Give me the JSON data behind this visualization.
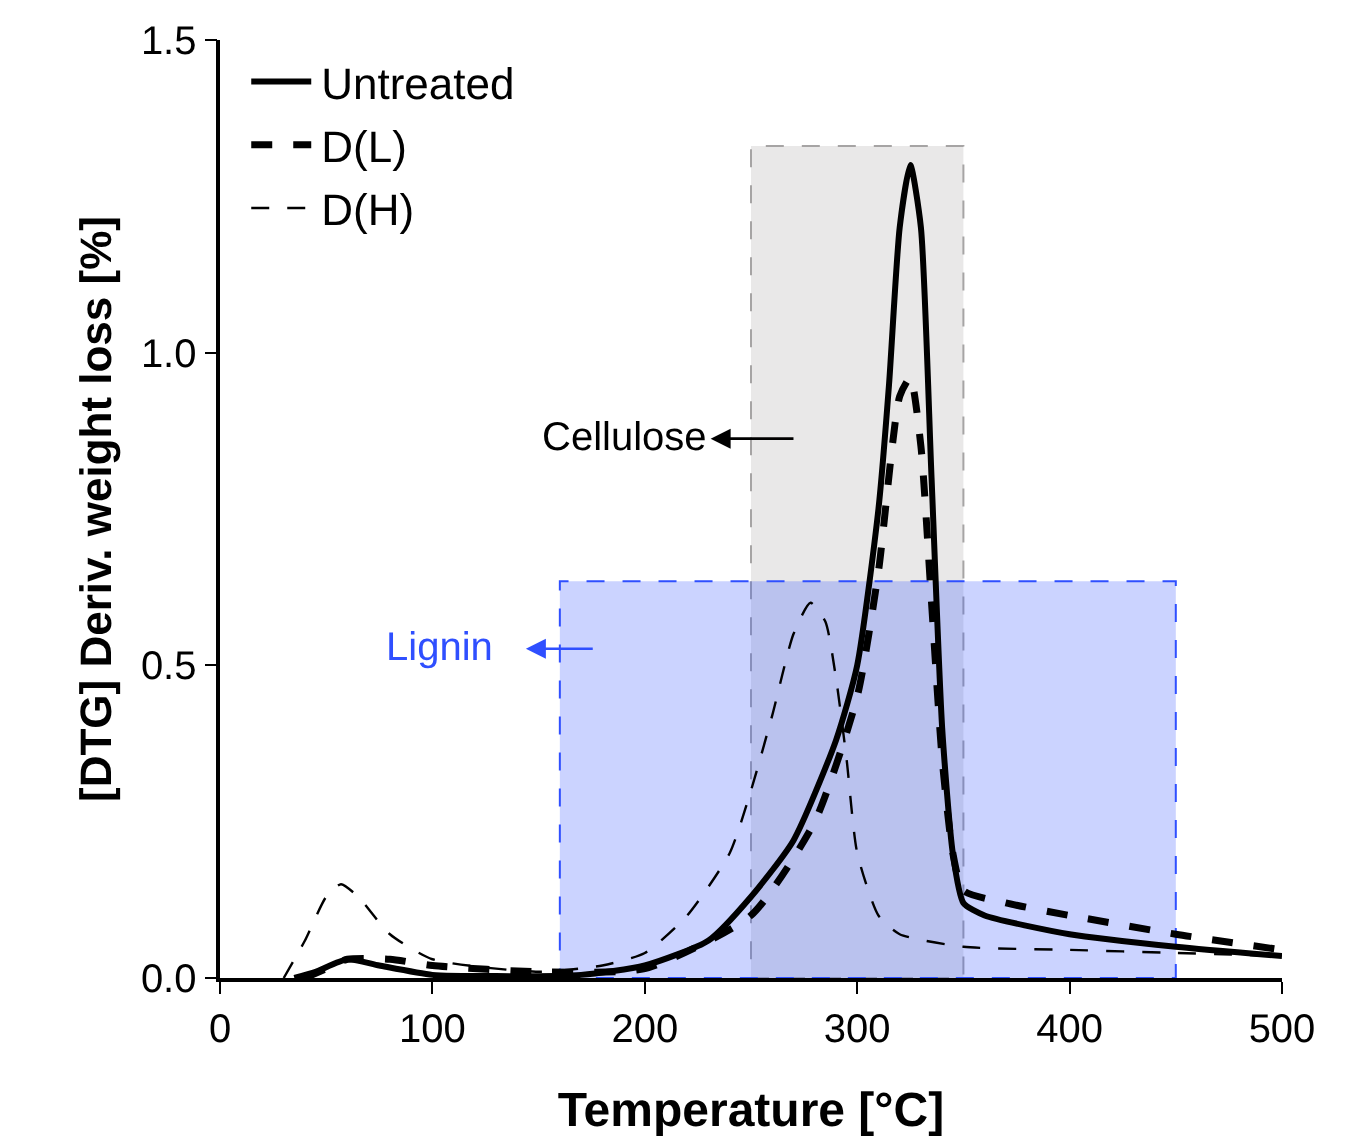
{
  "chart_data": {
    "type": "line",
    "xlabel": "Temperature [°C]",
    "ylabel": "[DTG] Deriv. weight loss [%]",
    "xlim": [
      0,
      500
    ],
    "ylim": [
      0,
      1.5
    ],
    "xticks": [
      0,
      100,
      200,
      300,
      400,
      500
    ],
    "yticks": [
      {
        "value": 0,
        "label": "0.0"
      },
      {
        "value": 0.5,
        "label": "0.5"
      },
      {
        "value": 1,
        "label": "1.0"
      },
      {
        "value": 1.5,
        "label": "1.5"
      }
    ],
    "grid": false,
    "legend": "top left",
    "marker": "none",
    "series": [
      {
        "name": "Untreated",
        "color": "#000000",
        "line_style": "solid",
        "x": [
          35,
          45,
          60,
          75,
          100,
          130,
          170,
          200,
          230,
          250,
          270,
          290,
          300,
          310,
          315,
          320,
          325,
          330,
          335,
          340,
          345,
          350,
          360,
          400,
          450,
          500
        ],
        "values": [
          0,
          0.01,
          0.03,
          0.02,
          0.005,
          0.003,
          0.005,
          0.02,
          0.06,
          0.13,
          0.22,
          0.38,
          0.5,
          0.75,
          0.95,
          1.2,
          1.3,
          1.2,
          0.8,
          0.4,
          0.2,
          0.12,
          0.1,
          0.07,
          0.05,
          0.035
        ]
      },
      {
        "name": "D(L)",
        "color": "#000000",
        "line_style": "dashed",
        "x": [
          40,
          50,
          60,
          80,
          100,
          150,
          200,
          250,
          280,
          300,
          310,
          320,
          325,
          330,
          335,
          340,
          345,
          350,
          370,
          400,
          450,
          500
        ],
        "values": [
          0,
          0.015,
          0.03,
          0.03,
          0.02,
          0.01,
          0.015,
          0.1,
          0.25,
          0.45,
          0.65,
          0.93,
          0.96,
          0.85,
          0.6,
          0.35,
          0.2,
          0.14,
          0.12,
          0.1,
          0.07,
          0.045
        ]
      },
      {
        "name": "D(H)",
        "color": "#000000",
        "line_style": "dashed",
        "x": [
          30,
          40,
          50,
          57,
          65,
          80,
          100,
          150,
          180,
          200,
          220,
          240,
          250,
          260,
          270,
          278,
          285,
          290,
          295,
          300,
          310,
          320,
          350,
          400,
          450,
          500
        ],
        "values": [
          0,
          0.06,
          0.13,
          0.15,
          0.13,
          0.07,
          0.03,
          0.01,
          0.02,
          0.04,
          0.1,
          0.2,
          0.3,
          0.42,
          0.55,
          0.6,
          0.57,
          0.48,
          0.35,
          0.2,
          0.1,
          0.07,
          0.05,
          0.045,
          0.04,
          0.035
        ]
      }
    ],
    "bands": [
      {
        "axis": "x",
        "from": 250,
        "to": 350,
        "color": "#a6a4a4"
      },
      {
        "axis": "x",
        "from": 160,
        "to": 450,
        "color": "#2f4fff"
      }
    ],
    "annotations": [
      "Cellulose",
      "Lignin"
    ]
  }
}
